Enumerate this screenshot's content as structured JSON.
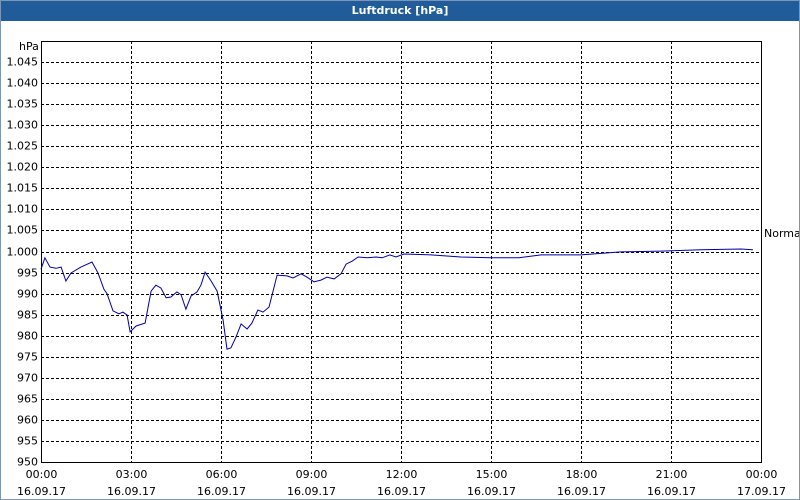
{
  "chart_data": {
    "type": "line",
    "title": "Luftdruck [hPa]",
    "ylabel": "hPa",
    "x": [
      0,
      0.13,
      0.3,
      0.5,
      0.67,
      0.83,
      1,
      1.33,
      1.7,
      1.9,
      2.1,
      2.2,
      2.4,
      2.6,
      2.73,
      2.87,
      2.97,
      3.17,
      3.47,
      3.67,
      3.83,
      4,
      4.17,
      4.33,
      4.53,
      4.67,
      4.83,
      5,
      5.2,
      5.33,
      5.47,
      5.67,
      5.87,
      6.07,
      6.2,
      6.33,
      6.5,
      6.67,
      6.87,
      7.03,
      7.23,
      7.4,
      7.6,
      7.87,
      8.2,
      8.4,
      8.67,
      8.87,
      9.1,
      9.33,
      9.53,
      9.77,
      10,
      10.17,
      10.37,
      10.57,
      10.87,
      11.17,
      11.37,
      11.63,
      11.83,
      12.1,
      13,
      14,
      15,
      15.93,
      16.67,
      18,
      19.33,
      20.67,
      22,
      23.33,
      23.73
    ],
    "series": [
      {
        "name": "Normal",
        "color": "#0000a0",
        "values": [
          995.8,
          998.5,
          996.3,
          996,
          996.3,
          993,
          994.9,
          996.3,
          997.5,
          994.9,
          991,
          990,
          985.9,
          985.2,
          985.6,
          984.9,
          980.9,
          982.3,
          983,
          990.6,
          992,
          991.3,
          989,
          989.2,
          990.4,
          989.7,
          986.3,
          989.4,
          990.4,
          992,
          995.1,
          993,
          990.6,
          983.7,
          976.8,
          977.1,
          979.7,
          982.8,
          981.6,
          983,
          986.1,
          985.6,
          986.8,
          994.4,
          994.2,
          993.7,
          994.7,
          993.9,
          992.8,
          993.2,
          993.9,
          993.5,
          994.7,
          997,
          997.7,
          998.7,
          998.5,
          998.7,
          998.5,
          999.2,
          998.7,
          999.4,
          999.2,
          998.7,
          998.5,
          998.5,
          999.2,
          999.2,
          999.9,
          1000.1,
          1000.4,
          1000.6,
          1000.4
        ]
      }
    ],
    "xlim": [
      0,
      24
    ],
    "xticks": [
      {
        "value": 0,
        "label": "00:00\n16.09.17"
      },
      {
        "value": 3,
        "label": "03:00\n16.09.17"
      },
      {
        "value": 6,
        "label": "06:00\n16.09.17"
      },
      {
        "value": 9,
        "label": "09:00\n16.09.17"
      },
      {
        "value": 12,
        "label": "12:00\n16.09.17"
      },
      {
        "value": 15,
        "label": "15:00\n16.09.17"
      },
      {
        "value": 18,
        "label": "18:00\n16.09.17"
      },
      {
        "value": 21,
        "label": "21:00\n16.09.17"
      },
      {
        "value": 24,
        "label": "00:00\n17.09.17"
      }
    ],
    "ylim": [
      950,
      1050
    ],
    "yticks": [
      950,
      955,
      960,
      965,
      970,
      975,
      980,
      985,
      990,
      995,
      {
        "value": 1000,
        "label": "1.000"
      },
      {
        "value": 1005,
        "label": "1.005"
      },
      {
        "value": 1010,
        "label": "1.010"
      },
      {
        "value": 1015,
        "label": "1.015"
      },
      {
        "value": 1020,
        "label": "1.020"
      },
      {
        "value": 1025,
        "label": "1.025"
      },
      {
        "value": 1030,
        "label": "1.030"
      },
      {
        "value": 1035,
        "label": "1.035"
      },
      {
        "value": 1040,
        "label": "1.040"
      },
      {
        "value": 1045,
        "label": "1.045"
      }
    ],
    "grid": true
  }
}
